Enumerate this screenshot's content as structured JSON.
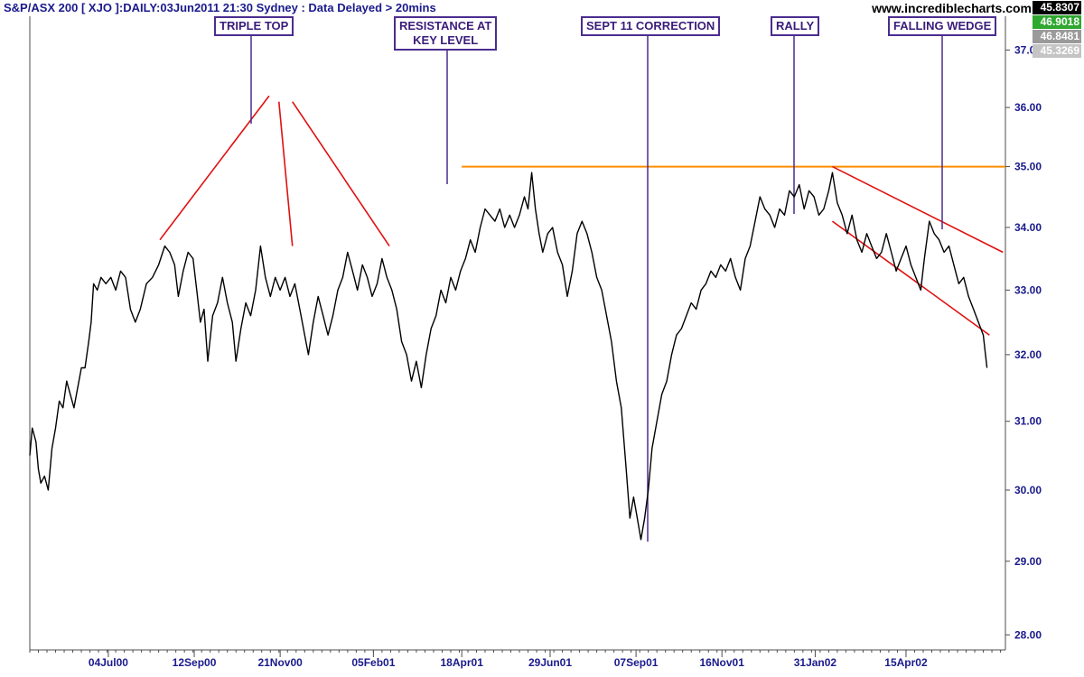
{
  "header": {
    "title": "S&P/ASX 200 [ XJO ]:DAILY:03Jun2011 21:30 Sydney : Data Delayed > 20mins",
    "site": "www.incrediblecharts.com"
  },
  "badges": [
    {
      "value": "45.8307",
      "bg": "#000000",
      "fg": "#ffffff"
    },
    {
      "value": "46.9018",
      "bg": "#2fa82f",
      "fg": "#ffffff"
    },
    {
      "value": "46.8481",
      "bg": "#9a9a9a",
      "fg": "#ffffff"
    },
    {
      "value": "45.3269",
      "bg": "#c4c4c4",
      "fg": "#ffffff"
    }
  ],
  "annotations": {
    "triple_top": "TRIPLE TOP",
    "resistance_1": "RESISTANCE AT",
    "resistance_2": "KEY LEVEL",
    "sept11": "SEPT 11 CORRECTION",
    "rally": "RALLY",
    "falling_wedge": "FALLING WEDGE"
  },
  "colors": {
    "price_line": "#000000",
    "trend_lines": "#e01010",
    "resistance_line": "#ff8c00",
    "callout_border": "#4b2c8f",
    "axis": "#4d4d4d"
  },
  "chart_data": {
    "type": "line",
    "scale": "log",
    "ylim": [
      27.8,
      37.6
    ],
    "x_range": [
      "2000-05-01",
      "2002-07-05"
    ],
    "yticks": [
      "28.00",
      "29.00",
      "30.00",
      "31.00",
      "32.00",
      "33.00",
      "34.00",
      "35.00",
      "36.00",
      "37.00"
    ],
    "xticks": [
      {
        "label": "04Jul00",
        "date": "2000-07-04"
      },
      {
        "label": "12Sep00",
        "date": "2000-09-12"
      },
      {
        "label": "21Nov00",
        "date": "2000-11-21"
      },
      {
        "label": "05Feb01",
        "date": "2001-02-05"
      },
      {
        "label": "18Apr01",
        "date": "2001-04-18"
      },
      {
        "label": "29Jun01",
        "date": "2001-06-29"
      },
      {
        "label": "07Sep01",
        "date": "2001-09-07"
      },
      {
        "label": "16Nov01",
        "date": "2001-11-16"
      },
      {
        "label": "31Jan02",
        "date": "2002-01-31"
      },
      {
        "label": "15Apr02",
        "date": "2002-04-15"
      }
    ],
    "series": [
      {
        "points": [
          [
            "2000-05-01",
            30.5
          ],
          [
            "2000-05-03",
            30.9
          ],
          [
            "2000-05-06",
            30.7
          ],
          [
            "2000-05-08",
            30.3
          ],
          [
            "2000-05-10",
            30.1
          ],
          [
            "2000-05-13",
            30.2
          ],
          [
            "2000-05-16",
            30.0
          ],
          [
            "2000-05-19",
            30.6
          ],
          [
            "2000-05-22",
            30.9
          ],
          [
            "2000-05-25",
            31.3
          ],
          [
            "2000-05-28",
            31.2
          ],
          [
            "2000-05-31",
            31.6
          ],
          [
            "2000-06-03",
            31.4
          ],
          [
            "2000-06-06",
            31.2
          ],
          [
            "2000-06-09",
            31.5
          ],
          [
            "2000-06-12",
            31.8
          ],
          [
            "2000-06-15",
            31.8
          ],
          [
            "2000-06-18",
            32.2
          ],
          [
            "2000-06-20",
            32.5
          ],
          [
            "2000-06-22",
            33.1
          ],
          [
            "2000-06-25",
            33.0
          ],
          [
            "2000-06-28",
            33.2
          ],
          [
            "2000-07-02",
            33.1
          ],
          [
            "2000-07-06",
            33.2
          ],
          [
            "2000-07-10",
            33.0
          ],
          [
            "2000-07-14",
            33.3
          ],
          [
            "2000-07-18",
            33.2
          ],
          [
            "2000-07-22",
            32.7
          ],
          [
            "2000-07-26",
            32.5
          ],
          [
            "2000-07-30",
            32.7
          ],
          [
            "2000-08-04",
            33.1
          ],
          [
            "2000-08-09",
            33.2
          ],
          [
            "2000-08-14",
            33.4
          ],
          [
            "2000-08-19",
            33.7
          ],
          [
            "2000-08-23",
            33.6
          ],
          [
            "2000-08-27",
            33.4
          ],
          [
            "2000-08-30",
            32.9
          ],
          [
            "2000-09-03",
            33.3
          ],
          [
            "2000-09-07",
            33.6
          ],
          [
            "2000-09-11",
            33.5
          ],
          [
            "2000-09-14",
            33.0
          ],
          [
            "2000-09-17",
            32.5
          ],
          [
            "2000-09-20",
            32.7
          ],
          [
            "2000-09-23",
            31.9
          ],
          [
            "2000-09-27",
            32.6
          ],
          [
            "2000-10-01",
            32.8
          ],
          [
            "2000-10-05",
            33.2
          ],
          [
            "2000-10-09",
            32.8
          ],
          [
            "2000-10-13",
            32.5
          ],
          [
            "2000-10-16",
            31.9
          ],
          [
            "2000-10-20",
            32.4
          ],
          [
            "2000-10-24",
            32.8
          ],
          [
            "2000-10-28",
            32.6
          ],
          [
            "2000-11-01",
            33.0
          ],
          [
            "2000-11-05",
            33.7
          ],
          [
            "2000-11-09",
            33.2
          ],
          [
            "2000-11-13",
            32.9
          ],
          [
            "2000-11-17",
            33.2
          ],
          [
            "2000-11-21",
            33.0
          ],
          [
            "2000-11-25",
            33.2
          ],
          [
            "2000-11-29",
            32.9
          ],
          [
            "2000-12-03",
            33.1
          ],
          [
            "2000-12-07",
            32.7
          ],
          [
            "2000-12-11",
            32.3
          ],
          [
            "2000-12-14",
            32.0
          ],
          [
            "2000-12-18",
            32.5
          ],
          [
            "2000-12-22",
            32.9
          ],
          [
            "2000-12-26",
            32.6
          ],
          [
            "2000-12-30",
            32.3
          ],
          [
            "2001-01-03",
            32.6
          ],
          [
            "2001-01-07",
            33.0
          ],
          [
            "2001-01-11",
            33.2
          ],
          [
            "2001-01-15",
            33.6
          ],
          [
            "2001-01-19",
            33.3
          ],
          [
            "2001-01-23",
            33.0
          ],
          [
            "2001-01-27",
            33.4
          ],
          [
            "2001-01-31",
            33.2
          ],
          [
            "2001-02-04",
            32.9
          ],
          [
            "2001-02-08",
            33.1
          ],
          [
            "2001-02-12",
            33.5
          ],
          [
            "2001-02-16",
            33.2
          ],
          [
            "2001-02-20",
            33.0
          ],
          [
            "2001-02-24",
            32.7
          ],
          [
            "2001-02-28",
            32.2
          ],
          [
            "2001-03-04",
            32.0
          ],
          [
            "2001-03-08",
            31.6
          ],
          [
            "2001-03-12",
            31.9
          ],
          [
            "2001-03-16",
            31.5
          ],
          [
            "2001-03-20",
            32.0
          ],
          [
            "2001-03-24",
            32.4
          ],
          [
            "2001-03-28",
            32.6
          ],
          [
            "2001-04-01",
            33.0
          ],
          [
            "2001-04-05",
            32.8
          ],
          [
            "2001-04-09",
            33.2
          ],
          [
            "2001-04-13",
            33.0
          ],
          [
            "2001-04-17",
            33.3
          ],
          [
            "2001-04-21",
            33.5
          ],
          [
            "2001-04-25",
            33.8
          ],
          [
            "2001-04-29",
            33.6
          ],
          [
            "2001-05-03",
            34.0
          ],
          [
            "2001-05-07",
            34.3
          ],
          [
            "2001-05-11",
            34.2
          ],
          [
            "2001-05-15",
            34.1
          ],
          [
            "2001-05-19",
            34.3
          ],
          [
            "2001-05-23",
            34.0
          ],
          [
            "2001-05-27",
            34.2
          ],
          [
            "2001-05-31",
            34.0
          ],
          [
            "2001-06-04",
            34.2
          ],
          [
            "2001-06-08",
            34.5
          ],
          [
            "2001-06-11",
            34.3
          ],
          [
            "2001-06-14",
            34.9
          ],
          [
            "2001-06-17",
            34.3
          ],
          [
            "2001-06-20",
            33.9
          ],
          [
            "2001-06-23",
            33.6
          ],
          [
            "2001-06-27",
            33.9
          ],
          [
            "2001-07-01",
            34.0
          ],
          [
            "2001-07-05",
            33.6
          ],
          [
            "2001-07-09",
            33.4
          ],
          [
            "2001-07-13",
            32.9
          ],
          [
            "2001-07-17",
            33.3
          ],
          [
            "2001-07-21",
            33.9
          ],
          [
            "2001-07-25",
            34.1
          ],
          [
            "2001-07-29",
            33.9
          ],
          [
            "2001-08-02",
            33.6
          ],
          [
            "2001-08-06",
            33.2
          ],
          [
            "2001-08-10",
            33.0
          ],
          [
            "2001-08-14",
            32.6
          ],
          [
            "2001-08-18",
            32.2
          ],
          [
            "2001-08-22",
            31.6
          ],
          [
            "2001-08-26",
            31.2
          ],
          [
            "2001-08-30",
            30.3
          ],
          [
            "2001-09-02",
            29.6
          ],
          [
            "2001-09-05",
            29.9
          ],
          [
            "2001-09-08",
            29.6
          ],
          [
            "2001-09-11",
            29.3
          ],
          [
            "2001-09-14",
            29.6
          ],
          [
            "2001-09-17",
            30.0
          ],
          [
            "2001-09-20",
            30.6
          ],
          [
            "2001-09-24",
            31.0
          ],
          [
            "2001-09-28",
            31.4
          ],
          [
            "2001-10-02",
            31.6
          ],
          [
            "2001-10-06",
            32.0
          ],
          [
            "2001-10-10",
            32.3
          ],
          [
            "2001-10-14",
            32.4
          ],
          [
            "2001-10-18",
            32.6
          ],
          [
            "2001-10-22",
            32.8
          ],
          [
            "2001-10-26",
            32.7
          ],
          [
            "2001-10-30",
            33.0
          ],
          [
            "2001-11-03",
            33.1
          ],
          [
            "2001-11-07",
            33.3
          ],
          [
            "2001-11-11",
            33.2
          ],
          [
            "2001-11-15",
            33.4
          ],
          [
            "2001-11-19",
            33.3
          ],
          [
            "2001-11-23",
            33.5
          ],
          [
            "2001-11-27",
            33.2
          ],
          [
            "2001-12-01",
            33.0
          ],
          [
            "2001-12-05",
            33.5
          ],
          [
            "2001-12-09",
            33.7
          ],
          [
            "2001-12-13",
            34.1
          ],
          [
            "2001-12-17",
            34.5
          ],
          [
            "2001-12-21",
            34.3
          ],
          [
            "2001-12-25",
            34.2
          ],
          [
            "2001-12-29",
            34.0
          ],
          [
            "2002-01-02",
            34.3
          ],
          [
            "2002-01-06",
            34.2
          ],
          [
            "2002-01-10",
            34.6
          ],
          [
            "2002-01-14",
            34.5
          ],
          [
            "2002-01-18",
            34.7
          ],
          [
            "2002-01-22",
            34.3
          ],
          [
            "2002-01-26",
            34.6
          ],
          [
            "2002-01-30",
            34.5
          ],
          [
            "2002-02-03",
            34.2
          ],
          [
            "2002-02-07",
            34.3
          ],
          [
            "2002-02-11",
            34.6
          ],
          [
            "2002-02-14",
            34.9
          ],
          [
            "2002-02-18",
            34.4
          ],
          [
            "2002-02-22",
            34.2
          ],
          [
            "2002-02-26",
            33.9
          ],
          [
            "2002-03-02",
            34.2
          ],
          [
            "2002-03-06",
            33.8
          ],
          [
            "2002-03-10",
            33.6
          ],
          [
            "2002-03-14",
            33.9
          ],
          [
            "2002-03-18",
            33.7
          ],
          [
            "2002-03-22",
            33.5
          ],
          [
            "2002-03-26",
            33.6
          ],
          [
            "2002-03-30",
            33.9
          ],
          [
            "2002-04-03",
            33.6
          ],
          [
            "2002-04-07",
            33.3
          ],
          [
            "2002-04-11",
            33.5
          ],
          [
            "2002-04-15",
            33.7
          ],
          [
            "2002-04-19",
            33.4
          ],
          [
            "2002-04-23",
            33.2
          ],
          [
            "2002-04-27",
            33.0
          ],
          [
            "2002-04-30",
            33.5
          ],
          [
            "2002-05-04",
            34.1
          ],
          [
            "2002-05-08",
            33.9
          ],
          [
            "2002-05-12",
            33.8
          ],
          [
            "2002-05-16",
            33.6
          ],
          [
            "2002-05-20",
            33.7
          ],
          [
            "2002-05-24",
            33.4
          ],
          [
            "2002-05-28",
            33.1
          ],
          [
            "2002-06-01",
            33.2
          ],
          [
            "2002-06-05",
            32.9
          ],
          [
            "2002-06-09",
            32.7
          ],
          [
            "2002-06-13",
            32.5
          ],
          [
            "2002-06-17",
            32.3
          ],
          [
            "2002-06-20",
            31.8
          ]
        ]
      }
    ],
    "resistance": {
      "value": 35.0,
      "from": "2001-04-18",
      "to": "2002-07-05"
    },
    "trend_lines": [
      {
        "from": [
          "2000-08-15",
          33.8
        ],
        "to": [
          "2000-11-12",
          36.2
        ]
      },
      {
        "from": [
          "2000-11-20",
          36.1
        ],
        "to": [
          "2000-12-01",
          33.7
        ]
      },
      {
        "from": [
          "2000-12-01",
          36.1
        ],
        "to": [
          "2001-02-18",
          33.7
        ]
      },
      {
        "from": [
          "2002-02-14",
          35.0
        ],
        "to": [
          "2002-07-03",
          33.6
        ]
      },
      {
        "from": [
          "2002-02-14",
          34.1
        ],
        "to": [
          "2002-06-22",
          32.3
        ]
      }
    ]
  }
}
